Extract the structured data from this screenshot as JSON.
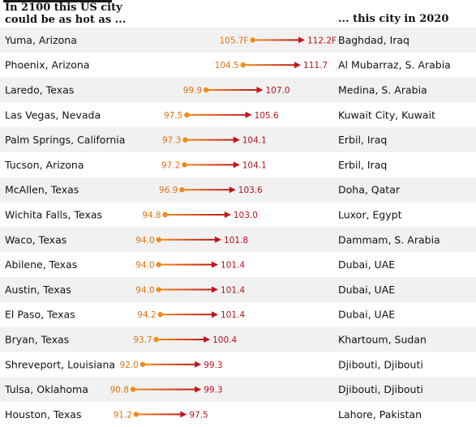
{
  "header": {
    "left_line1": "In 2100 this US city",
    "left_line2": "could be as hot as ...",
    "right": "... this city in 2020"
  },
  "colors": {
    "start": "#f08c1a",
    "end": "#c0161b",
    "row_shade": "#f1f1f1",
    "text": "#121212"
  },
  "chart_data": {
    "type": "dumbbell",
    "xlabel": "",
    "ylabel": "",
    "series": [
      {
        "values": [
          105.7,
          104.5,
          99.9,
          97.5,
          97.3,
          97.2,
          96.9,
          94.8,
          94.0,
          94.0,
          94.0,
          94.2,
          93.7,
          92.0,
          90.8,
          91.2
        ]
      },
      {
        "values": [
          112.2,
          111.7,
          107.0,
          105.6,
          104.1,
          104.1,
          103.6,
          103.0,
          101.8,
          101.4,
          101.4,
          101.4,
          100.4,
          99.3,
          99.3,
          97.5
        ]
      }
    ],
    "rows": [
      {
        "us_city": "Yuma, Arizona",
        "from_label": "105.7F",
        "to_label": "112.2F",
        "from": 105.7,
        "to": 112.2,
        "match": "Baghdad, Iraq"
      },
      {
        "us_city": "Phoenix, Arizona",
        "from_label": "104.5",
        "to_label": "111.7",
        "from": 104.5,
        "to": 111.7,
        "match": "Al Mubarraz, S. Arabia"
      },
      {
        "us_city": "Laredo, Texas",
        "from_label": "99.9",
        "to_label": "107.0",
        "from": 99.9,
        "to": 107.0,
        "match": "Medina, S. Arabia"
      },
      {
        "us_city": "Las Vegas, Nevada",
        "from_label": "97.5",
        "to_label": "105.6",
        "from": 97.5,
        "to": 105.6,
        "match": "Kuwait City, Kuwait"
      },
      {
        "us_city": "Palm Springs, California",
        "from_label": "97.3",
        "to_label": "104.1",
        "from": 97.3,
        "to": 104.1,
        "match": "Erbil, Iraq"
      },
      {
        "us_city": "Tucson, Arizona",
        "from_label": "97.2",
        "to_label": "104.1",
        "from": 97.2,
        "to": 104.1,
        "match": "Erbil, Iraq"
      },
      {
        "us_city": "McAllen, Texas",
        "from_label": "96.9",
        "to_label": "103.6",
        "from": 96.9,
        "to": 103.6,
        "match": "Doha, Qatar"
      },
      {
        "us_city": "Wichita Falls, Texas",
        "from_label": "94.8",
        "to_label": "103.0",
        "from": 94.8,
        "to": 103.0,
        "match": "Luxor, Egypt"
      },
      {
        "us_city": "Waco, Texas",
        "from_label": "94.0",
        "to_label": "101.8",
        "from": 94.0,
        "to": 101.8,
        "match": "Dammam, S. Arabia"
      },
      {
        "us_city": "Abilene, Texas",
        "from_label": "94.0",
        "to_label": "101.4",
        "from": 94.0,
        "to": 101.4,
        "match": "Dubai, UAE"
      },
      {
        "us_city": "Austin, Texas",
        "from_label": "94.0",
        "to_label": "101.4",
        "from": 94.0,
        "to": 101.4,
        "match": "Dubai, UAE"
      },
      {
        "us_city": "El Paso, Texas",
        "from_label": "94.2",
        "to_label": "101.4",
        "from": 94.2,
        "to": 101.4,
        "match": "Dubai, UAE"
      },
      {
        "us_city": "Bryan, Texas",
        "from_label": "93.7",
        "to_label": "100.4",
        "from": 93.7,
        "to": 100.4,
        "match": "Khartoum, Sudan"
      },
      {
        "us_city": "Shreveport, Louisiana",
        "from_label": "92.0",
        "to_label": "99.3",
        "from": 92.0,
        "to": 99.3,
        "match": "Djibouti, Djibouti"
      },
      {
        "us_city": "Tulsa, Oklahoma",
        "from_label": "90.8",
        "to_label": "99.3",
        "from": 90.8,
        "to": 99.3,
        "match": "Djibouti, Djibouti"
      },
      {
        "us_city": "Houston, Texas",
        "from_label": "91.2",
        "to_label": "97.5",
        "from": 91.2,
        "to": 97.5,
        "match": "Lahore, Pakistan"
      }
    ]
  }
}
